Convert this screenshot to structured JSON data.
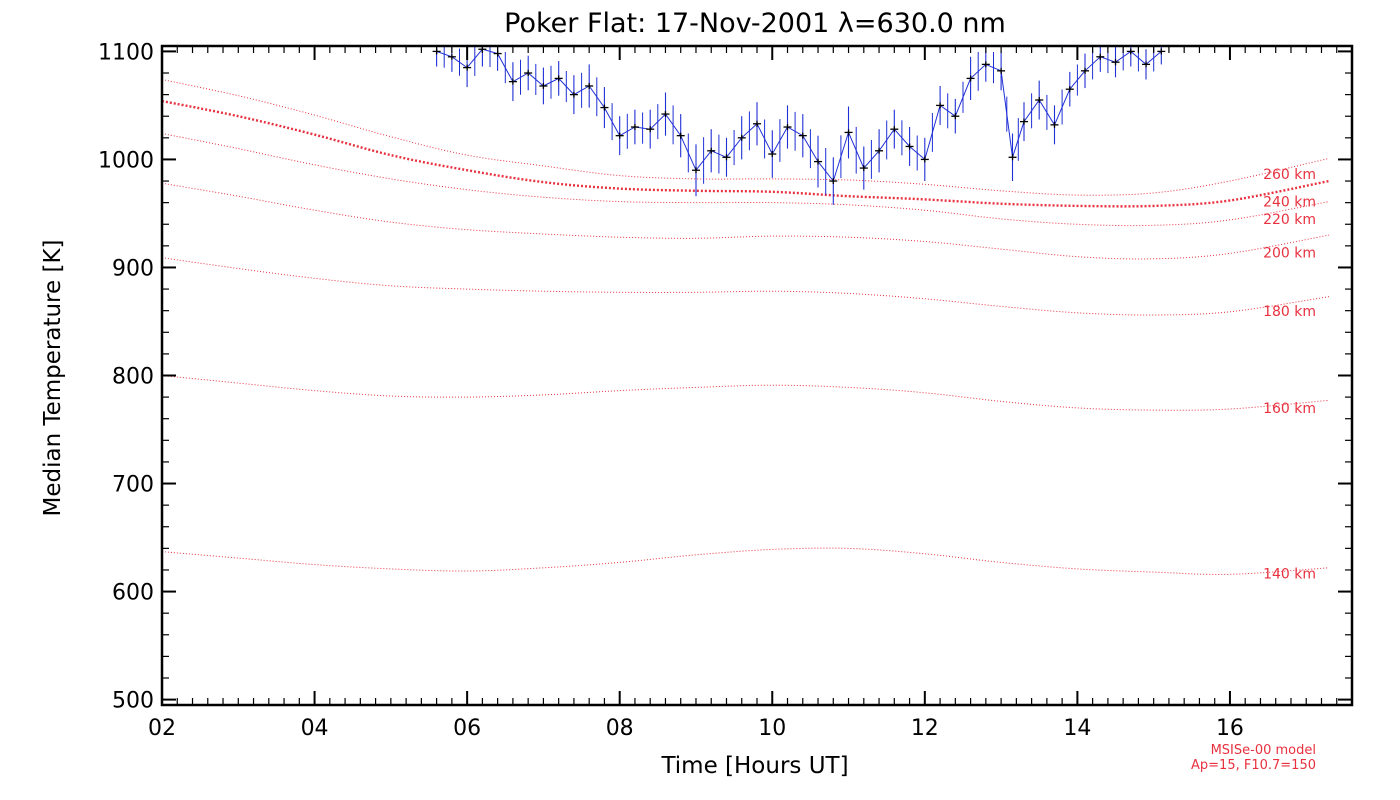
{
  "chart_data": {
    "type": "line",
    "title": "Poker Flat: 17-Nov-2001 λ=630.0 nm",
    "xlabel": "Time [Hours UT]",
    "ylabel": "Median Temperature [K]",
    "xlim": [
      2,
      17.6
    ],
    "ylim": [
      495,
      1105
    ],
    "xticks": [
      2,
      4,
      6,
      8,
      10,
      12,
      14,
      16
    ],
    "xtick_labels": [
      "02",
      "04",
      "06",
      "08",
      "10",
      "12",
      "14",
      "16"
    ],
    "yticks": [
      500,
      600,
      700,
      800,
      900,
      1000,
      1100
    ],
    "ytick_labels": [
      "500",
      "600",
      "700",
      "800",
      "900",
      "1000",
      "1100"
    ],
    "model_note": [
      "MSISe-00 model",
      "Ap=15, F10.7=150"
    ],
    "colors": {
      "model": "#e8313f",
      "errorbar": "#1f2fd6",
      "measured": "#000000"
    },
    "model_x": [
      2,
      3,
      4,
      5,
      6,
      7,
      8,
      9,
      10,
      11,
      12,
      13,
      14,
      15,
      16,
      17.3
    ],
    "series": [
      {
        "name": "140 km",
        "values": [
          637,
          631,
          625,
          621,
          619,
          622,
          627,
          634,
          639,
          640,
          635,
          627,
          621,
          618,
          616,
          622
        ]
      },
      {
        "name": "160 km",
        "values": [
          800,
          793,
          786,
          781,
          780,
          782,
          786,
          789,
          791,
          789,
          784,
          776,
          770,
          768,
          769,
          777
        ]
      },
      {
        "name": "180 km",
        "values": [
          909,
          899,
          890,
          883,
          880,
          878,
          877,
          877,
          878,
          876,
          871,
          864,
          858,
          856,
          859,
          873
        ]
      },
      {
        "name": "200 km",
        "values": [
          978,
          966,
          953,
          942,
          935,
          931,
          928,
          927,
          929,
          928,
          924,
          917,
          910,
          908,
          913,
          930
        ]
      },
      {
        "name": "220 km",
        "values": [
          1024,
          1010,
          995,
          982,
          972,
          965,
          961,
          960,
          960,
          958,
          953,
          945,
          940,
          939,
          944,
          961
        ]
      },
      {
        "name": "240 km",
        "values": [
          1054,
          1040,
          1023,
          1004,
          990,
          979,
          973,
          971,
          970,
          966,
          963,
          959,
          957,
          957,
          962,
          980
        ]
      },
      {
        "name": "260 km",
        "values": [
          1074,
          1059,
          1041,
          1021,
          1004,
          994,
          985,
          982,
          982,
          981,
          977,
          971,
          967,
          969,
          980,
          1001
        ]
      }
    ],
    "measured": {
      "name": "Median temperature",
      "x": [
        5.6,
        5.8,
        6.0,
        6.2,
        6.4,
        6.6,
        6.8,
        7.0,
        7.2,
        7.4,
        7.6,
        7.8,
        8.0,
        8.2,
        8.4,
        8.6,
        8.8,
        9.0,
        9.2,
        9.4,
        9.6,
        9.8,
        10.0,
        10.2,
        10.4,
        10.6,
        10.8,
        11.0,
        11.2,
        11.4,
        11.6,
        11.8,
        12.0,
        12.2,
        12.4,
        12.6,
        12.8,
        13.0,
        13.15,
        13.3,
        13.5,
        13.7,
        13.9,
        14.1,
        14.3,
        14.5,
        14.7,
        14.9,
        15.1
      ],
      "y": [
        1100,
        1095,
        1085,
        1102,
        1098,
        1072,
        1080,
        1068,
        1075,
        1060,
        1068,
        1048,
        1022,
        1030,
        1028,
        1042,
        1022,
        990,
        1008,
        1002,
        1020,
        1033,
        1005,
        1030,
        1022,
        998,
        980,
        1025,
        992,
        1008,
        1028,
        1012,
        1000,
        1050,
        1040,
        1075,
        1088,
        1082,
        1002,
        1035,
        1055,
        1032,
        1065,
        1082,
        1095,
        1090,
        1100,
        1088,
        1100
      ],
      "err": [
        14,
        14,
        18,
        16,
        16,
        18,
        16,
        17,
        16,
        18,
        20,
        19,
        18,
        16,
        18,
        20,
        20,
        24,
        20,
        18,
        20,
        20,
        22,
        20,
        20,
        24,
        22,
        24,
        20,
        20,
        18,
        18,
        20,
        18,
        16,
        20,
        16,
        18,
        22,
        18,
        18,
        18,
        16,
        16,
        14,
        14,
        14,
        14,
        12
      ]
    }
  }
}
